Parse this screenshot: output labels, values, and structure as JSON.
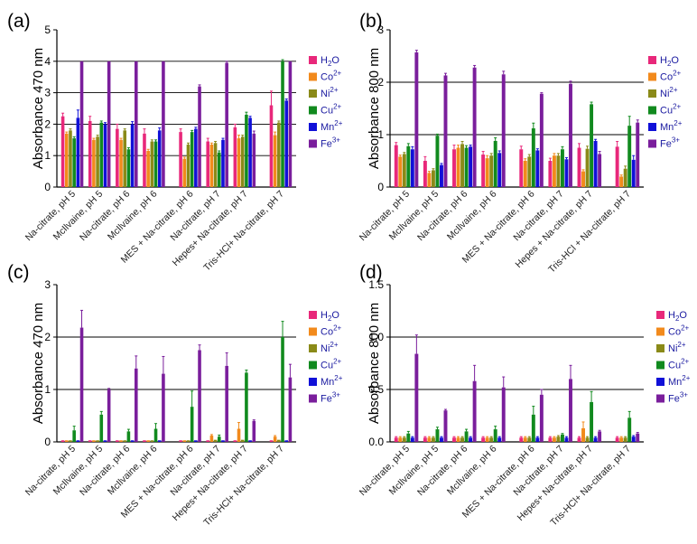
{
  "chart_data": [
    {
      "type": "bar",
      "panel": "(a)",
      "ylabel": "Absorbance 470 nm",
      "ylim": [
        0,
        5
      ],
      "yticks": [
        "0",
        "1",
        "2",
        "3",
        "4",
        "5"
      ],
      "gridlines": [
        1,
        2,
        3,
        4
      ],
      "groups": [
        4,
        7
      ],
      "categories": [
        "Na-citrate, pH 5",
        "McIlvaine, pH 5",
        "Na-citrate, pH 6",
        "McIlvaine, pH 6",
        "MES + Na-citrate, pH 6",
        "Na-citrate, pH 7",
        "Hepes+ Na-citrate, pH 7",
        "Tris-HCl+ Na-citrate, pH 7"
      ],
      "series": [
        {
          "name": "H2O",
          "base": "H",
          "sub": "2",
          "tail": "O",
          "sup": "",
          "color": "#e8287a",
          "values": [
            2.25,
            2.1,
            1.85,
            1.7,
            1.75,
            1.45,
            1.9,
            2.6
          ],
          "errors": [
            0.1,
            0.15,
            0.15,
            0.15,
            0.1,
            0.1,
            0.1,
            0.45
          ]
        },
        {
          "name": "Co2+",
          "base": "Co",
          "sub": "",
          "tail": "",
          "sup": "2+",
          "color": "#f28a1c",
          "values": [
            1.7,
            1.5,
            1.5,
            1.15,
            0.9,
            1.35,
            1.55,
            1.65
          ],
          "errors": [
            0.05,
            0.05,
            0.05,
            0.05,
            0.05,
            0.05,
            0.1,
            0.1
          ]
        },
        {
          "name": "Ni2+",
          "base": "Ni",
          "sub": "",
          "tail": "",
          "sup": "2+",
          "color": "#8a8a18",
          "values": [
            1.8,
            1.6,
            1.8,
            1.45,
            1.35,
            1.4,
            1.6,
            2.05
          ],
          "errors": [
            0.05,
            0.05,
            0.05,
            0.05,
            0.05,
            0.05,
            0.05,
            0.05
          ]
        },
        {
          "name": "Cu2+",
          "base": "Cu",
          "sub": "",
          "tail": "",
          "sup": "2+",
          "color": "#118a1e",
          "values": [
            1.55,
            2.05,
            1.2,
            1.45,
            1.75,
            1.1,
            2.3,
            4.0
          ],
          "errors": [
            0.05,
            0.05,
            0.05,
            0.05,
            0.05,
            0.05,
            0.08,
            0.05
          ]
        },
        {
          "name": "Mn2+",
          "base": "Mn",
          "sub": "",
          "tail": "",
          "sup": "2+",
          "color": "#1010d8",
          "values": [
            2.2,
            2.0,
            2.0,
            1.8,
            1.85,
            1.5,
            2.2,
            2.75
          ],
          "errors": [
            0.25,
            0.05,
            0.08,
            0.08,
            0.05,
            0.05,
            0.05,
            0.05
          ]
        },
        {
          "name": "Fe3+",
          "base": "Fe",
          "sub": "",
          "tail": "",
          "sup": "3+",
          "color": "#7a1e9c",
          "values": [
            4.0,
            4.0,
            4.0,
            4.0,
            3.2,
            3.95,
            1.7,
            4.0
          ],
          "errors": [
            0.0,
            0.0,
            0.0,
            0.0,
            0.05,
            0.05,
            0.08,
            0.0
          ]
        }
      ]
    },
    {
      "type": "bar",
      "panel": "(b)",
      "ylabel": "Absorbance 800 nm",
      "ylim": [
        0,
        3
      ],
      "yticks": [
        "0",
        "1",
        "2",
        "3"
      ],
      "gridlines": [
        1,
        2
      ],
      "groups": [
        4,
        7
      ],
      "categories": [
        "Na-citrate, pH 5",
        "McIlvaine, pH 5",
        "Na-citrate, pH 6",
        "McIlvaine, pH 6",
        "MES + Na-citrate, pH 6",
        "Na-citrate, pH 7",
        "Hepes + Na-citrate, pH 7",
        "Tris-HCl + Na-citrate, pH 7"
      ],
      "series": [
        {
          "name": "H2O",
          "base": "H",
          "sub": "2",
          "tail": "O",
          "sup": "",
          "color": "#e8287a",
          "values": [
            0.8,
            0.5,
            0.72,
            0.62,
            0.72,
            0.5,
            0.75,
            0.77
          ],
          "errors": [
            0.05,
            0.08,
            0.08,
            0.06,
            0.06,
            0.05,
            0.08,
            0.1
          ]
        },
        {
          "name": "Co2+",
          "base": "Co",
          "sub": "",
          "tail": "",
          "sup": "2+",
          "color": "#f28a1c",
          "values": [
            0.58,
            0.27,
            0.75,
            0.55,
            0.5,
            0.6,
            0.3,
            0.2
          ],
          "errors": [
            0.03,
            0.03,
            0.05,
            0.05,
            0.04,
            0.04,
            0.03,
            0.03
          ]
        },
        {
          "name": "Ni2+",
          "base": "Ni",
          "sub": "",
          "tail": "",
          "sup": "2+",
          "color": "#8a8a18",
          "values": [
            0.63,
            0.32,
            0.82,
            0.6,
            0.58,
            0.6,
            0.73,
            0.35
          ],
          "errors": [
            0.03,
            0.03,
            0.05,
            0.04,
            0.04,
            0.04,
            0.05,
            0.05
          ]
        },
        {
          "name": "Cu2+",
          "base": "Cu",
          "sub": "",
          "tail": "",
          "sup": "2+",
          "color": "#118a1e",
          "values": [
            0.78,
            0.98,
            0.75,
            0.88,
            1.12,
            0.72,
            1.58,
            1.17
          ],
          "errors": [
            0.05,
            0.03,
            0.04,
            0.06,
            0.1,
            0.05,
            0.04,
            0.18
          ]
        },
        {
          "name": "Mn2+",
          "base": "Mn",
          "sub": "",
          "tail": "",
          "sup": "2+",
          "color": "#1010d8",
          "values": [
            0.72,
            0.42,
            0.77,
            0.65,
            0.7,
            0.53,
            0.88,
            0.52
          ],
          "errors": [
            0.05,
            0.03,
            0.03,
            0.04,
            0.03,
            0.03,
            0.03,
            0.08
          ]
        },
        {
          "name": "Fe3+",
          "base": "Fe",
          "sub": "",
          "tail": "",
          "sup": "3+",
          "color": "#7a1e9c",
          "values": [
            2.57,
            2.13,
            2.28,
            2.15,
            1.78,
            1.97,
            0.63,
            1.23
          ],
          "errors": [
            0.04,
            0.04,
            0.04,
            0.06,
            0.02,
            0.05,
            0.05,
            0.05
          ]
        }
      ]
    },
    {
      "type": "bar",
      "panel": "(c)",
      "ylabel": "Absorbance 470 nm",
      "ylim": [
        0,
        3
      ],
      "yticks": [
        "0",
        "1",
        "2",
        "3"
      ],
      "gridlines": [
        1,
        2
      ],
      "groups": [
        4,
        7
      ],
      "categories": [
        "Na-citrate, pH 5",
        "McIlvaine, pH 5",
        "Na-citrate, pH 6",
        "McIlvaine, pH 6",
        "MES + Na-citrate, pH 6",
        "Na-citrate, pH 7",
        "Hepes+ Na-citrate, pH 7",
        "Tris-HCl+ Na-citrate, pH 7"
      ],
      "series": [
        {
          "name": "H2O",
          "base": "H",
          "sub": "2",
          "tail": "O",
          "sup": "",
          "color": "#e8287a",
          "values": [
            0.03,
            0.03,
            0.03,
            0.03,
            0.03,
            0.03,
            0.03,
            0.03
          ],
          "errors": [
            0.0,
            0.0,
            0.0,
            0.0,
            0.0,
            0.0,
            0.0,
            0.0
          ]
        },
        {
          "name": "Co2+",
          "base": "Co",
          "sub": "",
          "tail": "",
          "sup": "2+",
          "color": "#f28a1c",
          "values": [
            0.03,
            0.03,
            0.03,
            0.03,
            0.03,
            0.12,
            0.25,
            0.1
          ],
          "errors": [
            0.0,
            0.0,
            0.0,
            0.0,
            0.0,
            0.02,
            0.12,
            0.02
          ]
        },
        {
          "name": "Ni2+",
          "base": "Ni",
          "sub": "",
          "tail": "",
          "sup": "2+",
          "color": "#8a8a18",
          "values": [
            0.03,
            0.03,
            0.03,
            0.03,
            0.03,
            0.04,
            0.04,
            0.04
          ],
          "errors": [
            0.0,
            0.0,
            0.0,
            0.0,
            0.0,
            0.0,
            0.0,
            0.0
          ]
        },
        {
          "name": "Cu2+",
          "base": "Cu",
          "sub": "",
          "tail": "",
          "sup": "2+",
          "color": "#118a1e",
          "values": [
            0.22,
            0.52,
            0.2,
            0.25,
            0.67,
            0.1,
            1.32,
            2.0
          ],
          "errors": [
            0.08,
            0.06,
            0.04,
            0.1,
            0.3,
            0.03,
            0.05,
            0.3
          ]
        },
        {
          "name": "Mn2+",
          "base": "Mn",
          "sub": "",
          "tail": "",
          "sup": "2+",
          "color": "#1010d8",
          "values": [
            0.03,
            0.03,
            0.03,
            0.03,
            0.03,
            0.03,
            0.03,
            0.03
          ],
          "errors": [
            0.0,
            0.0,
            0.0,
            0.0,
            0.0,
            0.0,
            0.0,
            0.0
          ]
        },
        {
          "name": "Fe3+",
          "base": "Fe",
          "sub": "",
          "tail": "",
          "sup": "3+",
          "color": "#7a1e9c",
          "values": [
            2.18,
            1.0,
            1.4,
            1.3,
            1.75,
            1.45,
            0.4,
            1.23
          ],
          "errors": [
            0.33,
            0.02,
            0.24,
            0.33,
            0.1,
            0.25,
            0.02,
            0.25
          ]
        }
      ]
    },
    {
      "type": "bar",
      "panel": "(d)",
      "ylabel": "Absorbance 800 nm",
      "ylim": [
        0,
        1.5
      ],
      "yticks": [
        "0.0",
        "0.5",
        "1.0",
        "1.5"
      ],
      "gridlines": [
        0.5,
        1.0
      ],
      "groups": [
        4,
        7
      ],
      "categories": [
        "Na-citrate, pH 5",
        "McIlvaine, pH 5",
        "Na-citrate, pH 6",
        "McIlvaine, pH 6",
        "MES + Na-citrate, pH 6",
        "Na-citrate, pH 7",
        "Hepes+ Na-citrate, pH 7",
        "Tris-HCl+ Na-citrate, pH 7"
      ],
      "series": [
        {
          "name": "H2O",
          "base": "H",
          "sub": "2",
          "tail": "O",
          "sup": "",
          "color": "#e8287a",
          "values": [
            0.04,
            0.04,
            0.04,
            0.04,
            0.04,
            0.04,
            0.04,
            0.04
          ],
          "errors": [
            0.01,
            0.01,
            0.01,
            0.01,
            0.01,
            0.01,
            0.01,
            0.01
          ]
        },
        {
          "name": "Co2+",
          "base": "Co",
          "sub": "",
          "tail": "",
          "sup": "2+",
          "color": "#f28a1c",
          "values": [
            0.04,
            0.04,
            0.04,
            0.04,
            0.04,
            0.04,
            0.13,
            0.04
          ],
          "errors": [
            0.01,
            0.01,
            0.01,
            0.01,
            0.01,
            0.01,
            0.06,
            0.01
          ]
        },
        {
          "name": "Ni2+",
          "base": "Ni",
          "sub": "",
          "tail": "",
          "sup": "2+",
          "color": "#8a8a18",
          "values": [
            0.04,
            0.04,
            0.04,
            0.04,
            0.04,
            0.05,
            0.04,
            0.04
          ],
          "errors": [
            0.01,
            0.01,
            0.01,
            0.01,
            0.01,
            0.01,
            0.01,
            0.01
          ]
        },
        {
          "name": "Cu2+",
          "base": "Cu",
          "sub": "",
          "tail": "",
          "sup": "2+",
          "color": "#118a1e",
          "values": [
            0.08,
            0.12,
            0.1,
            0.12,
            0.26,
            0.07,
            0.38,
            0.23
          ],
          "errors": [
            0.02,
            0.02,
            0.02,
            0.03,
            0.08,
            0.01,
            0.1,
            0.06
          ]
        },
        {
          "name": "Mn2+",
          "base": "Mn",
          "sub": "",
          "tail": "",
          "sup": "2+",
          "color": "#1010d8",
          "values": [
            0.04,
            0.04,
            0.04,
            0.04,
            0.04,
            0.04,
            0.04,
            0.05
          ],
          "errors": [
            0.01,
            0.01,
            0.01,
            0.01,
            0.01,
            0.01,
            0.01,
            0.01
          ]
        },
        {
          "name": "Fe3+",
          "base": "Fe",
          "sub": "",
          "tail": "",
          "sup": "3+",
          "color": "#7a1e9c",
          "values": [
            0.84,
            0.3,
            0.58,
            0.52,
            0.45,
            0.6,
            0.1,
            0.08
          ],
          "errors": [
            0.18,
            0.01,
            0.15,
            0.1,
            0.05,
            0.13,
            0.01,
            0.01
          ]
        }
      ]
    }
  ]
}
